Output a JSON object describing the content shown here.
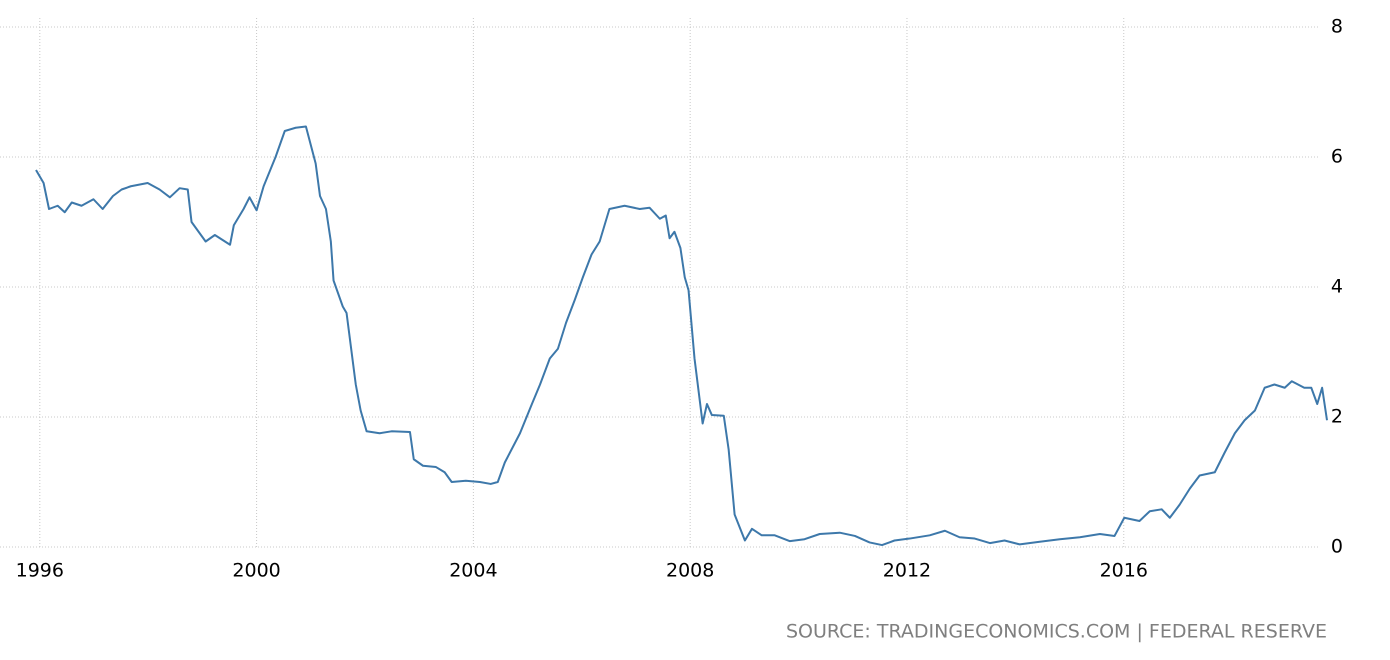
{
  "chart_data": {
    "type": "line",
    "source": "SOURCE: TRADINGECONOMICS.COM | FEDERAL RESERVE",
    "xlim": [
      1995.93,
      2019.75
    ],
    "xticks": [
      1996,
      2000,
      2004,
      2008,
      2012,
      2016
    ],
    "ylim": [
      0,
      8
    ],
    "yticks": [
      0,
      2,
      4,
      6,
      8
    ],
    "grid": true,
    "x": [
      1995.93,
      1996.07,
      1996.17,
      1996.33,
      1996.46,
      1996.59,
      1996.77,
      1996.99,
      1997.16,
      1997.35,
      1997.51,
      1997.68,
      1997.99,
      1998.21,
      1998.4,
      1998.58,
      1998.73,
      1998.8,
      1999.06,
      1999.23,
      1999.51,
      1999.58,
      1999.76,
      1999.87,
      2000.0,
      2000.13,
      2000.35,
      2000.52,
      2000.72,
      2000.91,
      2001.09,
      2001.17,
      2001.28,
      2001.37,
      2001.42,
      2001.59,
      2001.66,
      2001.83,
      2001.92,
      2002.03,
      2002.27,
      2002.49,
      2002.83,
      2002.9,
      2003.07,
      2003.31,
      2003.47,
      2003.6,
      2003.86,
      2004.12,
      2004.32,
      2004.45,
      2004.58,
      2004.86,
      2005.08,
      2005.23,
      2005.41,
      2005.56,
      2005.71,
      2005.87,
      2006.02,
      2006.18,
      2006.33,
      2006.51,
      2006.79,
      2007.07,
      2007.25,
      2007.44,
      2007.55,
      2007.62,
      2007.71,
      2007.82,
      2007.9,
      2007.97,
      2008.08,
      2008.23,
      2008.31,
      2008.4,
      2008.62,
      2008.71,
      2008.82,
      2009.01,
      2009.14,
      2009.32,
      2009.56,
      2009.84,
      2010.11,
      2010.39,
      2010.76,
      2011.04,
      2011.31,
      2011.54,
      2011.77,
      2012.05,
      2012.42,
      2012.7,
      2012.97,
      2013.25,
      2013.53,
      2013.8,
      2014.08,
      2014.45,
      2014.82,
      2015.19,
      2015.56,
      2015.83,
      2016.01,
      2016.29,
      2016.48,
      2016.7,
      2016.85,
      2017.03,
      2017.22,
      2017.4,
      2017.68,
      2017.86,
      2018.05,
      2018.23,
      2018.42,
      2018.6,
      2018.78,
      2018.97,
      2019.1,
      2019.33,
      2019.46,
      2019.57,
      2019.66,
      2019.75
    ],
    "series": [
      {
        "color": "#3d78aa",
        "values": [
          5.8,
          5.6,
          5.2,
          5.25,
          5.15,
          5.3,
          5.25,
          5.35,
          5.2,
          5.4,
          5.5,
          5.55,
          5.6,
          5.5,
          5.38,
          5.52,
          5.5,
          5.0,
          4.7,
          4.8,
          4.65,
          4.95,
          5.2,
          5.38,
          5.18,
          5.55,
          6.0,
          6.4,
          6.45,
          6.47,
          5.9,
          5.4,
          5.2,
          4.7,
          4.1,
          3.7,
          3.6,
          2.5,
          2.1,
          1.78,
          1.75,
          1.78,
          1.77,
          1.35,
          1.25,
          1.23,
          1.15,
          1.0,
          1.02,
          1.0,
          0.97,
          1.0,
          1.3,
          1.75,
          2.2,
          2.5,
          2.9,
          3.05,
          3.45,
          3.8,
          4.15,
          4.5,
          4.7,
          5.2,
          5.25,
          5.2,
          5.22,
          5.05,
          5.1,
          4.75,
          4.85,
          4.6,
          4.15,
          3.95,
          2.9,
          1.9,
          2.2,
          2.03,
          2.02,
          1.5,
          0.5,
          0.1,
          0.28,
          0.18,
          0.18,
          0.09,
          0.12,
          0.2,
          0.22,
          0.17,
          0.07,
          0.03,
          0.1,
          0.13,
          0.18,
          0.25,
          0.15,
          0.13,
          0.06,
          0.1,
          0.04,
          0.08,
          0.12,
          0.15,
          0.2,
          0.17,
          0.45,
          0.4,
          0.55,
          0.58,
          0.45,
          0.65,
          0.9,
          1.1,
          1.15,
          1.45,
          1.75,
          1.95,
          2.1,
          2.45,
          2.5,
          2.45,
          2.55,
          2.45,
          2.45,
          2.2,
          2.45,
          1.95
        ]
      }
    ]
  }
}
